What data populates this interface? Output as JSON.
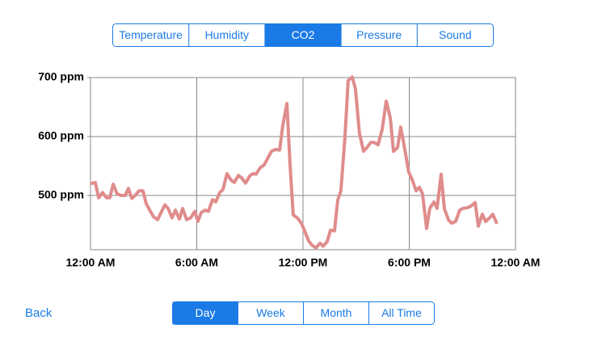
{
  "tabs": [
    "Temperature",
    "Humidity",
    "CO2",
    "Pressure",
    "Sound"
  ],
  "selected_tab": 2,
  "chart_data": {
    "type": "line",
    "x": [
      0,
      0.27,
      0.46,
      0.68,
      0.91,
      1.09,
      1.28,
      1.5,
      1.73,
      1.96,
      2.14,
      2.33,
      2.55,
      2.74,
      2.96,
      3.15,
      3.38,
      3.56,
      3.79,
      3.97,
      4.2,
      4.38,
      4.61,
      4.79,
      5.02,
      5.2,
      5.43,
      5.66,
      5.89,
      6.07,
      6.25,
      6.48,
      6.66,
      6.89,
      7.07,
      7.3,
      7.48,
      7.71,
      7.94,
      8.12,
      8.35,
      8.53,
      8.76,
      8.99,
      9.17,
      9.35,
      9.58,
      9.81,
      9.99,
      10.22,
      10.45,
      10.68,
      10.86,
      11.09,
      11.27,
      11.45,
      11.68,
      11.91,
      12.09,
      12.32,
      12.5,
      12.73,
      12.96,
      13.14,
      13.37,
      13.55,
      13.78,
      13.96,
      14.14,
      14.37,
      14.55,
      14.78,
      14.96,
      15.19,
      15.42,
      15.6,
      15.83,
      16.01,
      16.24,
      16.47,
      16.7,
      16.93,
      17.11,
      17.34,
      17.52,
      17.75,
      17.97,
      18.16,
      18.39,
      18.57,
      18.75,
      18.98,
      19.16,
      19.39,
      19.57,
      19.8,
      19.98,
      20.21,
      20.39,
      20.62,
      20.85,
      21.03,
      21.26,
      21.49,
      21.72,
      21.9,
      22.13,
      22.31,
      22.54,
      22.72,
      22.95
    ],
    "series": [
      {
        "color": "#e08c8c",
        "values": [
          520,
          522,
          496,
          505,
          496,
          496,
          519,
          503,
          500,
          500,
          512,
          495,
          501,
          508,
          508,
          486,
          473,
          464,
          459,
          470,
          484,
          478,
          462,
          475,
          460,
          478,
          459,
          462,
          473,
          456,
          471,
          475,
          473,
          493,
          489,
          505,
          510,
          537,
          526,
          522,
          534,
          530,
          521,
          533,
          537,
          536,
          547,
          552,
          562,
          575,
          578,
          577,
          619,
          656,
          551,
          467,
          462,
          453,
          440,
          423,
          416,
          411,
          419,
          414,
          422,
          441,
          440,
          492,
          508,
          599,
          695,
          701,
          681,
          605,
          575,
          581,
          590,
          590,
          586,
          612,
          660,
          632,
          575,
          581,
          616,
          578,
          540,
          527,
          508,
          514,
          503,
          444,
          478,
          489,
          478,
          536,
          478,
          459,
          453,
          456,
          475,
          478,
          479,
          482,
          488,
          448,
          468,
          456,
          462,
          468,
          452
        ]
      }
    ],
    "xlim": [
      0,
      24
    ],
    "xticks": [
      {
        "value": 0,
        "label": "12:00 AM"
      },
      {
        "value": 6,
        "label": "6:00 AM"
      },
      {
        "value": 12,
        "label": "12:00 PM"
      },
      {
        "value": 18,
        "label": "6:00 PM"
      },
      {
        "value": 24,
        "label": "12:00 AM"
      }
    ],
    "ylim": [
      408,
      700
    ],
    "yticks": [
      {
        "value": 500,
        "label": "500 ppm"
      },
      {
        "value": 600,
        "label": "600 ppm"
      },
      {
        "value": 700,
        "label": "700 ppm"
      }
    ],
    "grid": true
  },
  "ranges": [
    "Day",
    "Week",
    "Month",
    "All Time"
  ],
  "selected_range": 0,
  "back": "Back"
}
